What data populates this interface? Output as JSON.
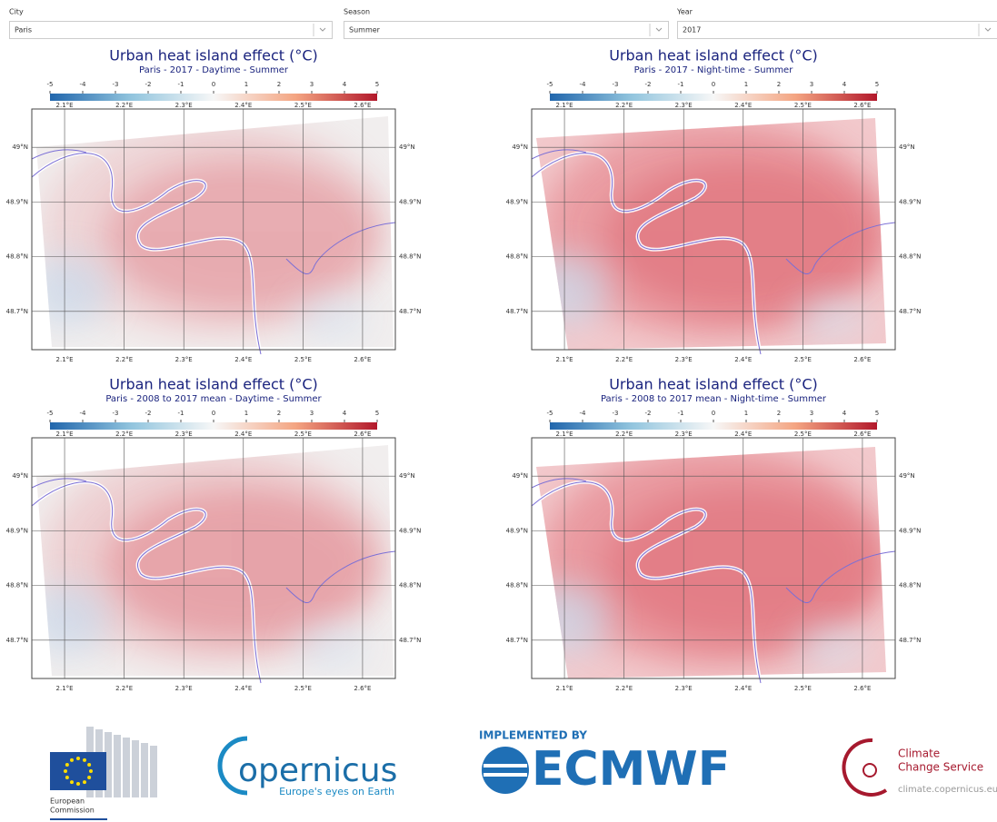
{
  "controls": [
    {
      "label": "City",
      "value": "Paris"
    },
    {
      "label": "Season",
      "value": "Summer"
    },
    {
      "label": "Year",
      "value": "2017"
    }
  ],
  "axes": {
    "colorbar": {
      "lim": [
        -5,
        5
      ],
      "ticks": [
        -5,
        -4,
        -3,
        -2,
        -1,
        0,
        1,
        2,
        3,
        4,
        5
      ],
      "colors": [
        "#2166ac",
        "#92c5de",
        "#f7f7f7",
        "#f4a582",
        "#b2182b"
      ]
    },
    "lon_lim": [
      2.045,
      2.655
    ],
    "lon_ticks": [
      {
        "value": 2.1,
        "label": "2.1°E"
      },
      {
        "value": 2.2,
        "label": "2.2°E"
      },
      {
        "value": 2.3,
        "label": "2.3°E"
      },
      {
        "value": 2.4,
        "label": "2.4°E"
      },
      {
        "value": 2.5,
        "label": "2.5°E"
      },
      {
        "value": 2.6,
        "label": "2.6°E"
      }
    ],
    "lat_lim": [
      48.63,
      49.07
    ],
    "lat_ticks": [
      {
        "value": 49,
        "label": "49°N"
      },
      {
        "value": 48.9,
        "label": "48.9°N"
      },
      {
        "value": 48.8,
        "label": "48.8°N"
      },
      {
        "value": 48.7,
        "label": "48.7°N"
      }
    ]
  },
  "panels": [
    {
      "title": "Urban heat island effect (°C)",
      "subtitle": "Paris - 2017 - Daytime - Summer"
    },
    {
      "title": "Urban heat island effect (°C)",
      "subtitle": "Paris - 2017 - Night-time - Summer"
    },
    {
      "title": "Urban heat island effect (°C)",
      "subtitle": "Paris - 2008 to 2017 mean - Daytime - Summer"
    },
    {
      "title": "Urban heat island effect (°C)",
      "subtitle": "Paris - 2008 to 2017 mean - Night-time - Summer"
    }
  ],
  "logos": {
    "ec": [
      "European",
      "Commission"
    ],
    "copernicus": {
      "name": "opernicus",
      "tagline": "Europe's eyes on Earth"
    },
    "ecmwf": {
      "pre": "IMPLEMENTED BY",
      "name": "ECMWF"
    },
    "c3s": {
      "line1": "Climate",
      "line2": "Change Service",
      "url": "climate.copernicus.eu"
    }
  }
}
